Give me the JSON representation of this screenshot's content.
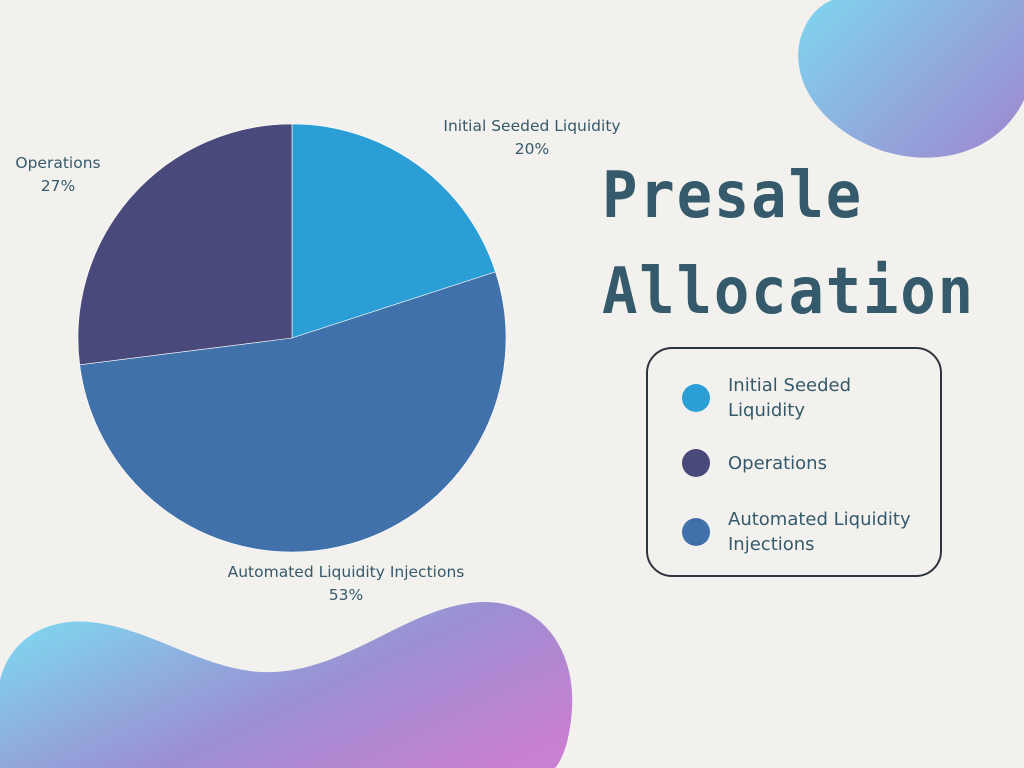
{
  "title_lines": [
    "Presale",
    "Allocation"
  ],
  "colors": {
    "background": "#f3f1ed",
    "title": "#355a6b",
    "label_text": "#355a6b",
    "legend_border": "#2f3540",
    "blob_gradient_start": "#7fd6f0",
    "blob_gradient_mid": "#9b8fd2",
    "blob_gradient_end": "#c97fd3"
  },
  "chart_data": {
    "type": "pie",
    "title": "Presale Allocation",
    "start_angle_deg": 0,
    "direction": "clockwise",
    "slices": [
      {
        "label": "Initial Seeded Liquidity",
        "value": 20,
        "display": "20%",
        "color": "#2b9fd5"
      },
      {
        "label": "Automated Liquidity Injections",
        "value": 53,
        "display": "53%",
        "color": "#4171ab"
      },
      {
        "label": "Operations",
        "value": 27,
        "display": "27%",
        "color": "#49497b"
      }
    ],
    "legend": {
      "placement": "right",
      "items": [
        {
          "label": "Initial Seeded Liquidity",
          "color": "#2b9fd5"
        },
        {
          "label": "Operations",
          "color": "#49497b"
        },
        {
          "label": "Automated Liquidity Injections",
          "color": "#4171ab"
        }
      ]
    }
  }
}
